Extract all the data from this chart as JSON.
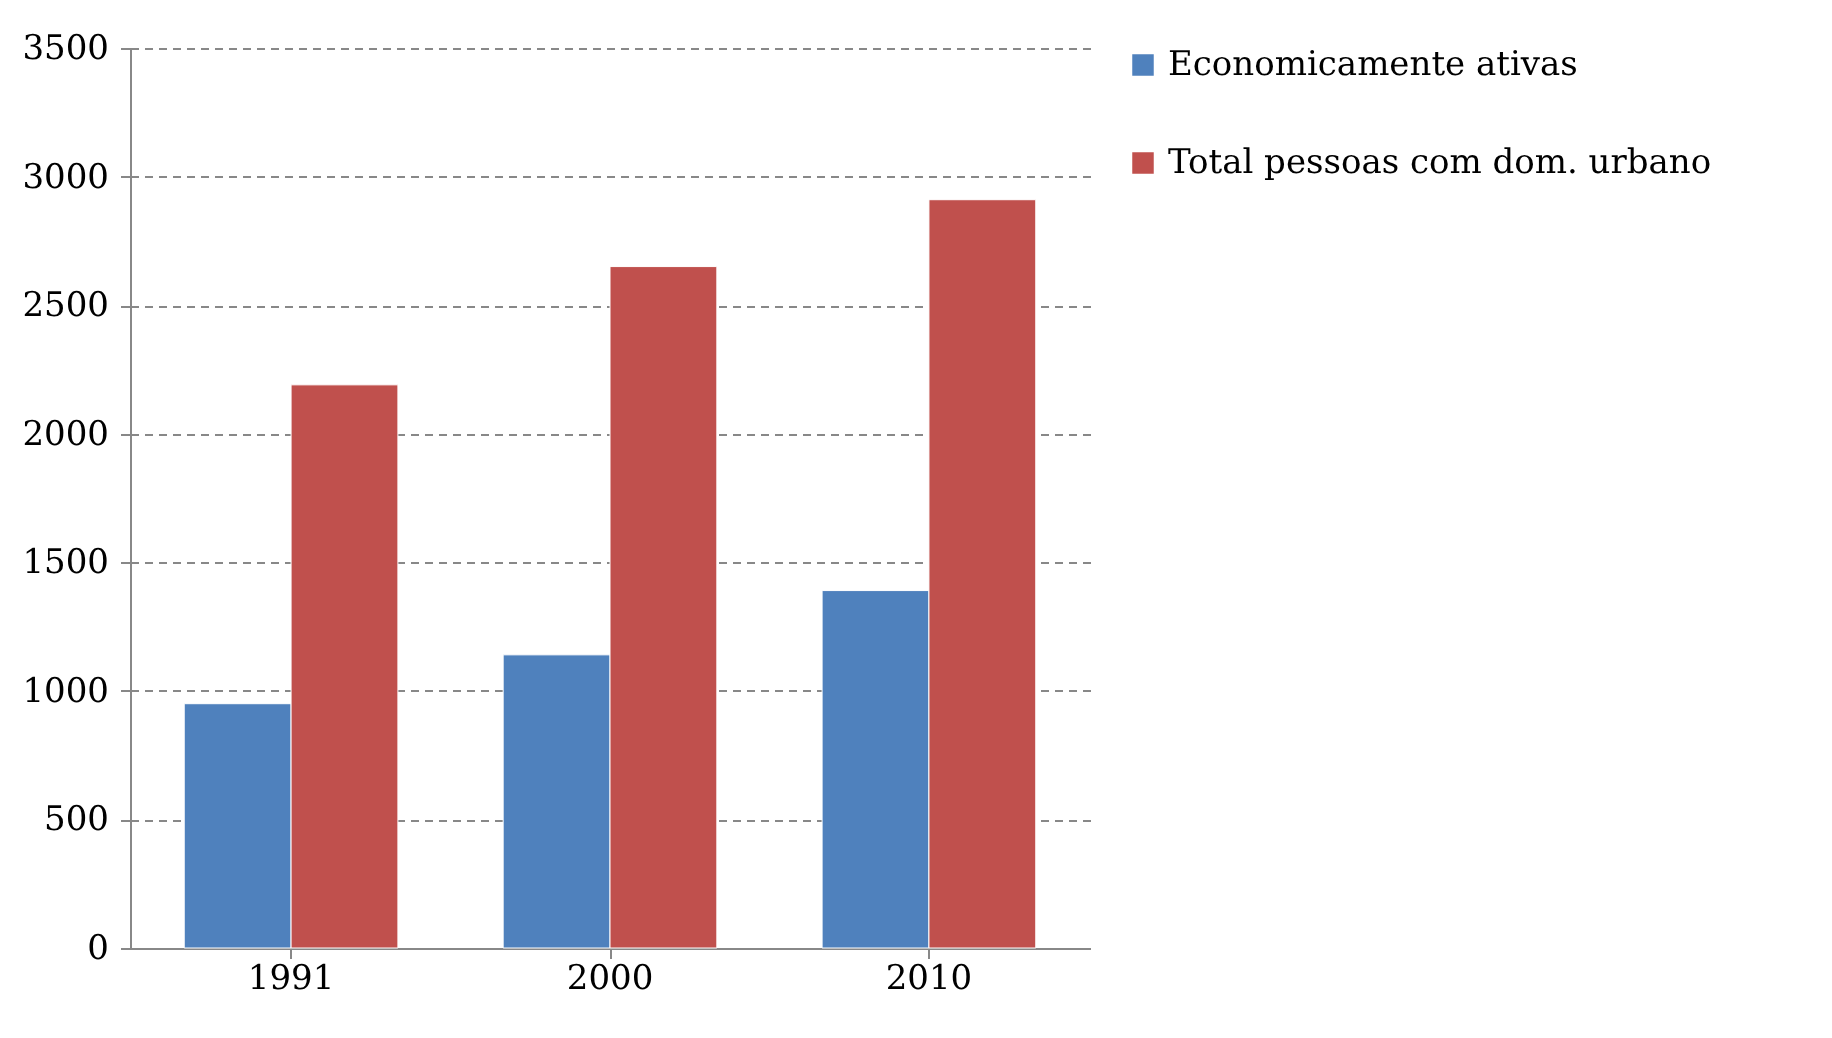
{
  "chart_data": {
    "type": "bar",
    "categories": [
      "1991",
      "2000",
      "2010"
    ],
    "series": [
      {
        "name": "Economicamente ativas",
        "color": "#4f81bd",
        "values": [
          950,
          1140,
          1390
        ]
      },
      {
        "name": "Total pessoas com dom. urbano",
        "color": "#c0504d",
        "values": [
          2190,
          2650,
          2910
        ]
      }
    ],
    "ylim": [
      0,
      3500
    ],
    "yticks": [
      0,
      500,
      1000,
      1500,
      2000,
      2500,
      3000,
      3500
    ],
    "grid": "y",
    "line_style": "dashed",
    "legend": "right"
  }
}
